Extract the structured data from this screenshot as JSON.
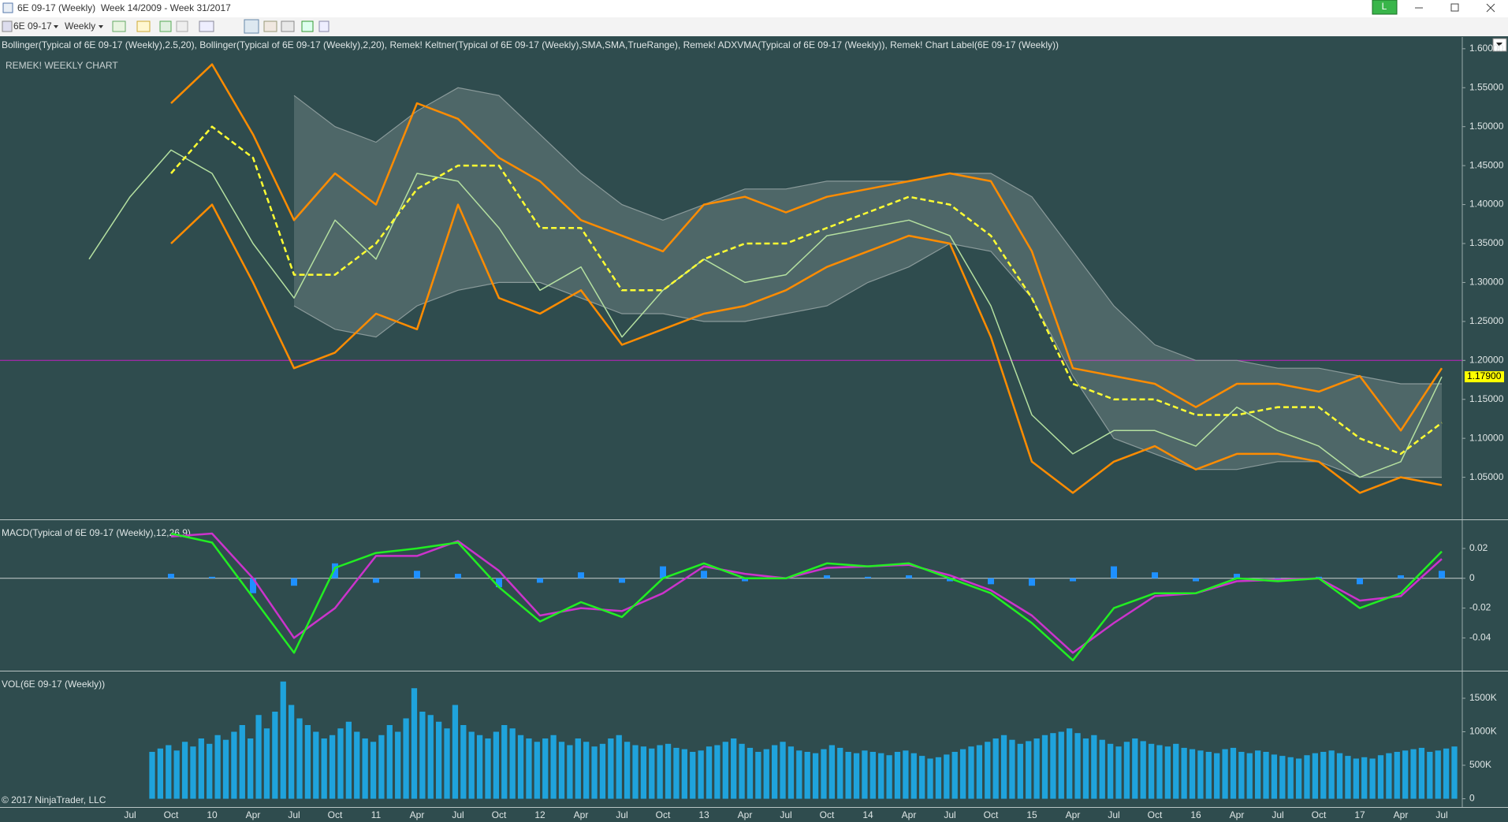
{
  "window": {
    "title": "6E 09-17 (Weekly)  Week 14/2009 - Week 31/2017",
    "instrument": "6E 09-17",
    "interval": "Weekly",
    "account_badge": "L"
  },
  "time_axis": {
    "labels": [
      null,
      "Jul",
      "Oct",
      "10",
      "Apr",
      "Jul",
      "Oct",
      "11",
      "Apr",
      "Jul",
      "Oct",
      "12",
      "Apr",
      "Jul",
      "Oct",
      "13",
      "Apr",
      "Jul",
      "Oct",
      "14",
      "Apr",
      "Jul",
      "Oct",
      "15",
      "Apr",
      "Jul",
      "Oct",
      "16",
      "Apr",
      "Jul",
      "Oct",
      "17",
      "Apr",
      "Jul"
    ]
  },
  "chart_data": [
    {
      "type": "line",
      "title": "REMEK! WEEKLY CHART",
      "indicators_label": "Bollinger(Typical of 6E 09-17 (Weekly),2.5,20), Bollinger(Typical of 6E 09-17 (Weekly),2,20), Remek! Keltner(Typical of 6E 09-17 (Weekly),SMA,SMA,TrueRange), Remek! ADXVMA(Typical of 6E 09-17 (Weekly)), Remek! Chart Label(6E 09-17 (Weekly))",
      "ylim": [
        0.996,
        1.615
      ],
      "yticks": [
        {
          "value": 1.05,
          "label": "1.05000"
        },
        {
          "value": 1.1,
          "label": "1.10000"
        },
        {
          "value": 1.15,
          "label": "1.15000"
        },
        {
          "value": 1.2,
          "label": "1.20000"
        },
        {
          "value": 1.25,
          "label": "1.25000"
        },
        {
          "value": 1.3,
          "label": "1.30000"
        },
        {
          "value": 1.35,
          "label": "1.35000"
        },
        {
          "value": 1.4,
          "label": "1.40000"
        },
        {
          "value": 1.45,
          "label": "1.45000"
        },
        {
          "value": 1.5,
          "label": "1.50000"
        },
        {
          "value": 1.55,
          "label": "1.55000"
        },
        {
          "value": 1.6,
          "label": "1.60000"
        }
      ],
      "reference_line": {
        "value": 1.2,
        "color": "#c020c0"
      },
      "price_marker": {
        "value": 1.179,
        "label": "1.17900",
        "color": "#ffff00"
      },
      "series": [
        {
          "type": "band",
          "color": "#8a9a9a",
          "upper": [
            null,
            null,
            null,
            null,
            null,
            1.54,
            1.5,
            1.48,
            1.52,
            1.55,
            1.54,
            1.49,
            1.44,
            1.4,
            1.38,
            1.4,
            1.42,
            1.42,
            1.43,
            1.43,
            1.43,
            1.44,
            1.44,
            1.41,
            1.34,
            1.27,
            1.22,
            1.2,
            1.2,
            1.19,
            1.19,
            1.18,
            1.17,
            1.17
          ],
          "lower": [
            null,
            null,
            null,
            null,
            null,
            1.27,
            1.24,
            1.23,
            1.27,
            1.29,
            1.3,
            1.3,
            1.28,
            1.26,
            1.26,
            1.25,
            1.25,
            1.26,
            1.27,
            1.3,
            1.32,
            1.35,
            1.34,
            1.28,
            1.18,
            1.1,
            1.08,
            1.06,
            1.06,
            1.07,
            1.07,
            1.05,
            1.05,
            1.05
          ]
        },
        {
          "type": "line",
          "color": "#b4e0a0",
          "values": [
            1.33,
            1.41,
            1.47,
            1.44,
            1.35,
            1.28,
            1.38,
            1.33,
            1.44,
            1.43,
            1.37,
            1.29,
            1.32,
            1.23,
            1.29,
            1.33,
            1.3,
            1.31,
            1.36,
            1.37,
            1.38,
            1.36,
            1.27,
            1.13,
            1.08,
            1.11,
            1.11,
            1.09,
            1.14,
            1.11,
            1.09,
            1.05,
            1.07,
            1.179
          ]
        },
        {
          "type": "line",
          "color": "#ff8c00",
          "values": [
            null,
            null,
            1.53,
            1.58,
            1.49,
            1.38,
            1.44,
            1.4,
            1.53,
            1.51,
            1.46,
            1.43,
            1.38,
            1.36,
            1.34,
            1.4,
            1.41,
            1.39,
            1.41,
            1.42,
            1.43,
            1.44,
            1.43,
            1.34,
            1.19,
            1.18,
            1.17,
            1.14,
            1.17,
            1.17,
            1.16,
            1.18,
            1.11,
            1.19
          ]
        },
        {
          "type": "line",
          "color": "#ff8c00",
          "values": [
            null,
            null,
            1.35,
            1.4,
            1.3,
            1.19,
            1.21,
            1.26,
            1.24,
            1.4,
            1.28,
            1.26,
            1.29,
            1.22,
            1.24,
            1.26,
            1.27,
            1.29,
            1.32,
            1.34,
            1.36,
            1.35,
            1.23,
            1.07,
            1.03,
            1.07,
            1.09,
            1.06,
            1.08,
            1.08,
            1.07,
            1.03,
            1.05,
            1.04
          ]
        },
        {
          "type": "line",
          "color": "#ffff33",
          "dashed": true,
          "values": [
            null,
            null,
            1.44,
            1.5,
            1.46,
            1.31,
            1.31,
            1.35,
            1.42,
            1.45,
            1.45,
            1.37,
            1.37,
            1.29,
            1.29,
            1.33,
            1.35,
            1.35,
            1.37,
            1.39,
            1.41,
            1.4,
            1.36,
            1.28,
            1.17,
            1.15,
            1.15,
            1.13,
            1.13,
            1.14,
            1.14,
            1.1,
            1.08,
            1.12
          ]
        }
      ]
    },
    {
      "type": "line",
      "title": "MACD(Typical of 6E 09-17 (Weekly),12,26,9)",
      "ylim": [
        -0.062,
        0.039
      ],
      "yticks": [
        0.02,
        0,
        -0.02,
        -0.04
      ],
      "zero_line": 0,
      "series": [
        {
          "type": "bar",
          "color": "#1e90ff",
          "values": [
            null,
            null,
            0.003,
            0.001,
            -0.01,
            -0.005,
            0.01,
            -0.003,
            0.005,
            0.003,
            -0.006,
            -0.003,
            0.004,
            -0.003,
            0.008,
            0.005,
            -0.002,
            0.0,
            0.002,
            0.001,
            0.002,
            -0.002,
            -0.004,
            -0.005,
            -0.002,
            0.008,
            0.004,
            -0.002,
            0.003,
            -0.001,
            0.001,
            -0.004,
            0.002,
            0.005
          ]
        },
        {
          "type": "line",
          "color": "#cc33cc",
          "values": [
            null,
            null,
            0.028,
            0.03,
            0.0,
            -0.04,
            -0.02,
            0.015,
            0.015,
            0.025,
            0.005,
            -0.025,
            -0.02,
            -0.022,
            -0.01,
            0.008,
            0.003,
            0.0,
            0.007,
            0.008,
            0.009,
            0.002,
            -0.008,
            -0.025,
            -0.05,
            -0.03,
            -0.012,
            -0.01,
            -0.002,
            -0.001,
            0.0,
            -0.015,
            -0.012,
            0.013
          ]
        },
        {
          "type": "line",
          "color": "#22ee22",
          "values": [
            null,
            null,
            0.03,
            0.024,
            -0.013,
            -0.05,
            0.007,
            0.017,
            0.02,
            0.024,
            -0.006,
            -0.029,
            -0.016,
            -0.026,
            0.0,
            0.01,
            0.0,
            0.0,
            0.01,
            0.008,
            0.01,
            0.0,
            -0.01,
            -0.03,
            -0.055,
            -0.02,
            -0.01,
            -0.01,
            0.0,
            -0.002,
            0.0,
            -0.02,
            -0.01,
            0.018
          ]
        }
      ]
    },
    {
      "type": "bar",
      "title": "VOL(6E 09-17 (Weekly))",
      "color": "#1fa3dc",
      "ylim": [
        -100000,
        1900000
      ],
      "yticks": [
        0,
        {
          "value": 500000,
          "label": "500K"
        },
        {
          "value": 1000000,
          "label": "1000K"
        },
        {
          "value": 1500000,
          "label": "1500K"
        }
      ],
      "values": [
        700000,
        750000,
        800000,
        720000,
        850000,
        780000,
        900000,
        820000,
        950000,
        880000,
        1000000,
        1100000,
        900000,
        1250000,
        1050000,
        1300000,
        1750000,
        1400000,
        1200000,
        1100000,
        1000000,
        900000,
        950000,
        1050000,
        1150000,
        1000000,
        900000,
        850000,
        950000,
        1100000,
        1000000,
        1200000,
        1650000,
        1300000,
        1250000,
        1150000,
        1050000,
        1400000,
        1100000,
        1000000,
        950000,
        900000,
        1000000,
        1100000,
        1050000,
        950000,
        900000,
        850000,
        900000,
        950000,
        850000,
        800000,
        900000,
        850000,
        780000,
        820000,
        900000,
        950000,
        850000,
        800000,
        780000,
        750000,
        800000,
        820000,
        760000,
        740000,
        700000,
        720000,
        780000,
        800000,
        850000,
        900000,
        820000,
        760000,
        700000,
        740000,
        800000,
        850000,
        780000,
        720000,
        700000,
        680000,
        740000,
        800000,
        760000,
        700000,
        680000,
        720000,
        700000,
        680000,
        650000,
        700000,
        720000,
        680000,
        640000,
        600000,
        620000,
        660000,
        700000,
        740000,
        780000,
        800000,
        850000,
        900000,
        950000,
        880000,
        820000,
        860000,
        900000,
        950000,
        980000,
        1000000,
        1050000,
        980000,
        900000,
        950000,
        880000,
        820000,
        780000,
        850000,
        900000,
        860000,
        820000,
        800000,
        780000,
        820000,
        760000,
        740000,
        720000,
        700000,
        680000,
        740000,
        760000,
        700000,
        680000,
        720000,
        700000,
        660000,
        640000,
        620000,
        600000,
        650000,
        680000,
        700000,
        720000,
        680000,
        640000,
        600000,
        620000,
        600000,
        650000,
        680000,
        700000,
        720000,
        740000,
        760000,
        700000,
        720000,
        750000,
        780000
      ]
    }
  ],
  "footer": {
    "copyright": "© 2017 NinjaTrader, LLC"
  }
}
